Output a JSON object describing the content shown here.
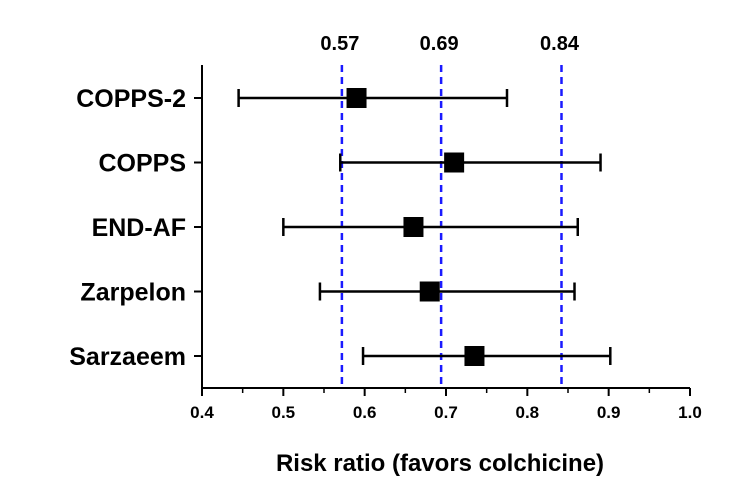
{
  "chart_data": {
    "type": "forest",
    "categories": [
      "COPPS-2",
      "COPPS",
      "END-AF",
      "Zarpelon",
      "Sarzaeem"
    ],
    "series": [
      {
        "estimate": [
          0.59,
          0.71,
          0.66,
          0.68,
          0.735
        ],
        "ci_lower": [
          0.445,
          0.57,
          0.5,
          0.545,
          0.598
        ],
        "ci_upper": [
          0.775,
          0.89,
          0.862,
          0.858,
          0.902
        ]
      }
    ],
    "reference_lines": [
      {
        "value": 0.572,
        "label": "0.57"
      },
      {
        "value": 0.694,
        "label": "0.69"
      },
      {
        "value": 0.842,
        "label": "0.84"
      }
    ],
    "x_ticks": [
      "0.4",
      "0.5",
      "0.6",
      "0.7",
      "0.8",
      "0.9",
      "1.0"
    ],
    "xlim": [
      0.4,
      1.0
    ],
    "xlabel": "Risk ratio (favors colchicine)",
    "colors": {
      "marker": "#000000",
      "reference_line": "#1a1aff",
      "axis": "#000000"
    },
    "grid": false
  }
}
